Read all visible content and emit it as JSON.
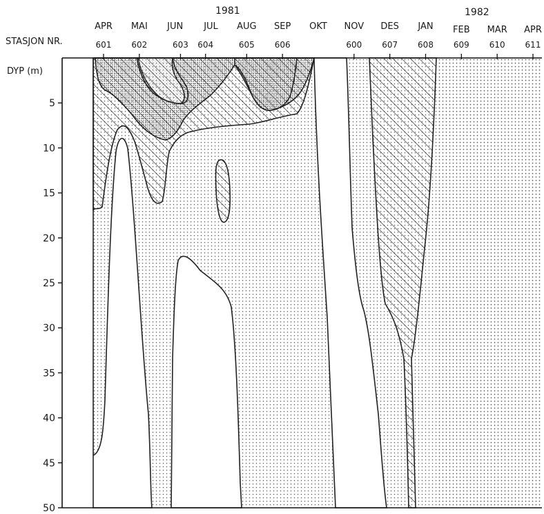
{
  "chart_data": {
    "type": "heatmap",
    "title": "",
    "years": [
      "1981",
      "1982"
    ],
    "station_label": "STASJON NR.",
    "depth_label": "DYP (m)",
    "depth_ticks": [
      5,
      10,
      15,
      20,
      25,
      30,
      35,
      40,
      45,
      50
    ],
    "ylim": [
      0,
      50
    ],
    "months": [
      "APR",
      "MAI",
      "JUN",
      "JUL",
      "AUG",
      "SEP",
      "OKT",
      "NOV",
      "DES",
      "JAN",
      "FEB",
      "MAR",
      "APR"
    ],
    "stations": [
      "601",
      "602",
      "603",
      "604",
      "605",
      "606",
      "600",
      "607",
      "608",
      "609",
      "610",
      "611"
    ],
    "legend": "none",
    "grid": false,
    "shading_classes": [
      "white",
      "light-dotted",
      "hatched",
      "dense-dotted",
      "cross-hatched"
    ]
  }
}
